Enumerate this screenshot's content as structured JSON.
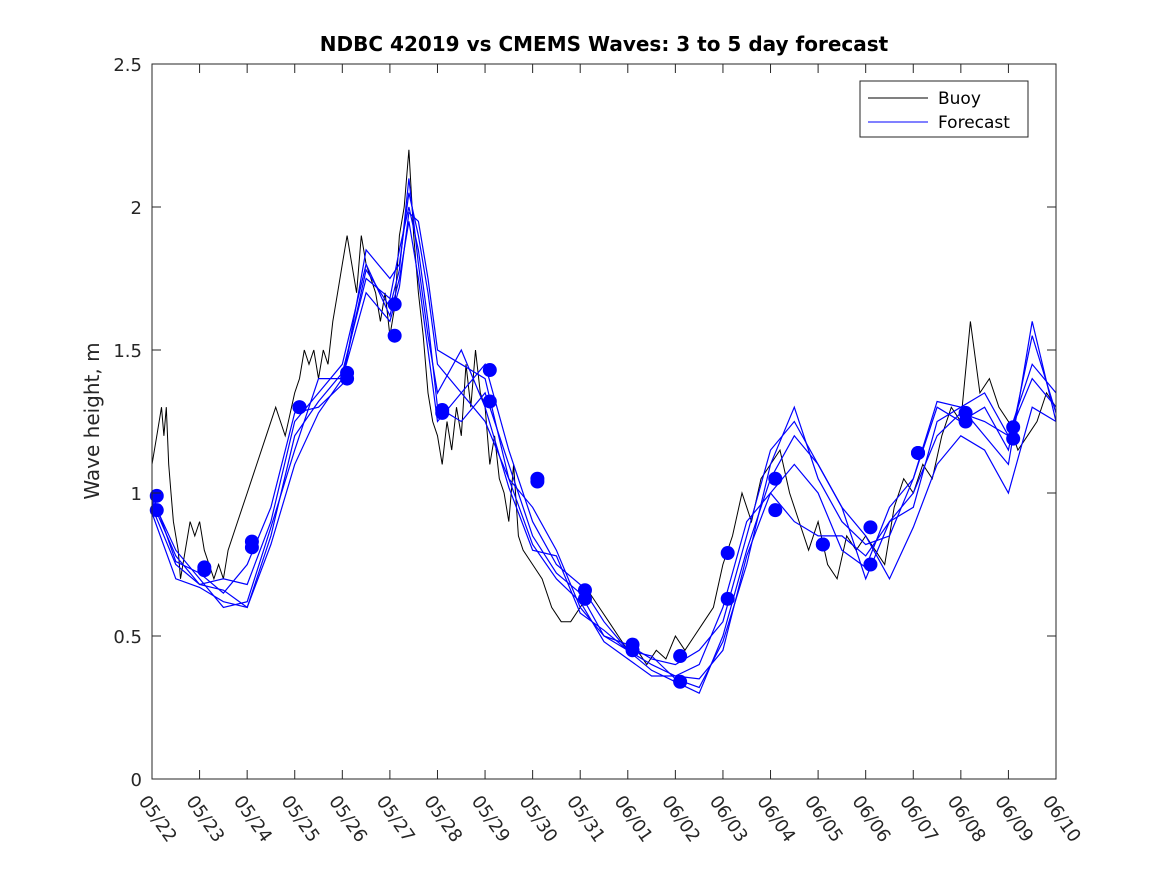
{
  "chart_data": {
    "type": "line",
    "title": "NDBC 42019 vs CMEMS Waves: 3 to 5 day forecast",
    "xlabel": "",
    "ylabel": "Wave height, m",
    "ylim": [
      0,
      2.5
    ],
    "yticks": [
      0,
      0.5,
      1,
      1.5,
      2,
      2.5
    ],
    "ytick_labels": [
      "0",
      "0.5",
      "1",
      "1.5",
      "2",
      "2.5"
    ],
    "xlim": [
      0,
      19
    ],
    "xtick_labels": [
      "05/22",
      "05/23",
      "05/24",
      "05/25",
      "05/26",
      "05/27",
      "05/28",
      "05/29",
      "05/30",
      "05/31",
      "06/01",
      "06/02",
      "06/03",
      "06/04",
      "06/05",
      "06/06",
      "06/07",
      "06/08",
      "06/09",
      "06/10"
    ],
    "legend": {
      "position": "top-right",
      "entries": [
        "Buoy",
        "Forecast"
      ]
    },
    "colors": {
      "buoy": "#000000",
      "forecast": "#0000ff",
      "axis": "#262626"
    },
    "buoy": {
      "name": "Buoy",
      "x": [
        0.0,
        0.1,
        0.2,
        0.25,
        0.3,
        0.35,
        0.4,
        0.45,
        0.5,
        0.55,
        0.6,
        0.7,
        0.8,
        0.9,
        1.0,
        1.1,
        1.2,
        1.3,
        1.4,
        1.5,
        1.6,
        1.8,
        2.0,
        2.2,
        2.4,
        2.6,
        2.8,
        3.0,
        3.1,
        3.2,
        3.3,
        3.4,
        3.5,
        3.6,
        3.7,
        3.8,
        3.9,
        4.0,
        4.1,
        4.2,
        4.3,
        4.4,
        4.5,
        4.6,
        4.7,
        4.8,
        4.9,
        5.0,
        5.1,
        5.2,
        5.3,
        5.4,
        5.5,
        5.6,
        5.7,
        5.8,
        5.9,
        6.0,
        6.1,
        6.2,
        6.3,
        6.4,
        6.5,
        6.6,
        6.7,
        6.8,
        6.9,
        7.0,
        7.1,
        7.2,
        7.3,
        7.4,
        7.5,
        7.6,
        7.7,
        7.8,
        8.0,
        8.2,
        8.4,
        8.6,
        8.8,
        9.0,
        9.2,
        9.4,
        9.6,
        9.8,
        10.0,
        10.2,
        10.4,
        10.6,
        10.8,
        11.0,
        11.2,
        11.4,
        11.6,
        11.8,
        12.0,
        12.2,
        12.4,
        12.6,
        12.8,
        13.0,
        13.2,
        13.4,
        13.6,
        13.8,
        14.0,
        14.2,
        14.4,
        14.6,
        14.8,
        15.0,
        15.2,
        15.4,
        15.6,
        15.8,
        16.0,
        16.2,
        16.4,
        16.6,
        16.8,
        17.0,
        17.2,
        17.4,
        17.6,
        17.8,
        18.0,
        18.2,
        18.4,
        18.6,
        18.8,
        19.0
      ],
      "values": [
        1.1,
        1.2,
        1.3,
        1.2,
        1.3,
        1.1,
        1.0,
        0.9,
        0.85,
        0.8,
        0.7,
        0.8,
        0.9,
        0.85,
        0.9,
        0.8,
        0.75,
        0.7,
        0.75,
        0.7,
        0.8,
        0.9,
        1.0,
        1.1,
        1.2,
        1.3,
        1.2,
        1.35,
        1.4,
        1.5,
        1.45,
        1.5,
        1.4,
        1.5,
        1.45,
        1.6,
        1.7,
        1.8,
        1.9,
        1.8,
        1.7,
        1.9,
        1.8,
        1.75,
        1.7,
        1.6,
        1.7,
        1.55,
        1.65,
        1.9,
        2.0,
        2.2,
        1.9,
        1.7,
        1.55,
        1.35,
        1.25,
        1.2,
        1.1,
        1.25,
        1.15,
        1.3,
        1.2,
        1.45,
        1.3,
        1.5,
        1.35,
        1.3,
        1.1,
        1.2,
        1.05,
        1.0,
        0.9,
        1.1,
        0.85,
        0.8,
        0.75,
        0.7,
        0.6,
        0.55,
        0.55,
        0.6,
        0.65,
        0.6,
        0.55,
        0.5,
        0.45,
        0.45,
        0.4,
        0.45,
        0.42,
        0.5,
        0.45,
        0.5,
        0.55,
        0.6,
        0.75,
        0.85,
        1.0,
        0.9,
        1.05,
        1.1,
        1.15,
        1.0,
        0.9,
        0.8,
        0.9,
        0.75,
        0.7,
        0.85,
        0.8,
        0.85,
        0.8,
        0.75,
        0.95,
        1.05,
        1.0,
        1.1,
        1.05,
        1.2,
        1.3,
        1.25,
        1.6,
        1.35,
        1.4,
        1.3,
        1.25,
        1.15,
        1.2,
        1.25,
        1.35,
        1.3
      ]
    },
    "forecast": {
      "name": "Forecast",
      "series": [
        {
          "x": [
            0.0,
            0.5,
            1.0,
            1.5,
            2.0,
            2.5,
            3.0,
            3.5,
            4.0,
            4.5,
            5.0,
            5.2,
            5.4,
            5.6,
            5.8,
            6.0,
            6.5,
            7.0,
            7.5,
            8.0,
            8.5,
            9.0,
            9.5,
            10.0,
            10.5,
            11.0,
            11.5,
            12.0,
            12.5,
            13.0,
            13.5,
            14.0,
            14.5,
            15.0,
            15.5,
            16.0,
            16.5,
            17.0,
            17.5,
            18.0,
            18.5,
            19.0
          ],
          "values": [
            0.97,
            0.78,
            0.68,
            0.66,
            0.6,
            0.85,
            1.2,
            1.32,
            1.42,
            1.75,
            1.68,
            1.85,
            2.0,
            1.85,
            1.6,
            1.3,
            1.25,
            1.35,
            1.1,
            0.85,
            0.72,
            0.65,
            0.5,
            0.45,
            0.4,
            0.36,
            0.4,
            0.6,
            0.9,
            1.0,
            0.9,
            0.85,
            0.85,
            0.78,
            0.9,
            1.0,
            1.2,
            1.28,
            1.25,
            1.2,
            1.4,
            1.3
          ]
        },
        {
          "x": [
            0.0,
            0.5,
            1.0,
            1.5,
            2.0,
            2.5,
            3.0,
            3.5,
            4.0,
            4.5,
            5.0,
            5.2,
            5.4,
            5.6,
            5.8,
            6.0,
            6.5,
            7.0,
            7.5,
            8.0,
            8.5,
            9.0,
            9.5,
            10.0,
            10.5,
            11.0,
            11.5,
            12.0,
            12.5,
            13.0,
            13.5,
            14.0,
            14.5,
            15.0,
            15.5,
            16.0,
            16.5,
            17.0,
            17.5,
            18.0,
            18.5,
            19.0
          ],
          "values": [
            0.95,
            0.75,
            0.68,
            0.7,
            0.68,
            0.9,
            1.25,
            1.35,
            1.45,
            1.8,
            1.62,
            1.75,
            1.95,
            1.75,
            1.5,
            1.25,
            1.35,
            1.45,
            1.15,
            0.9,
            0.75,
            0.68,
            0.55,
            0.45,
            0.38,
            0.34,
            0.3,
            0.5,
            0.8,
            1.05,
            1.2,
            1.1,
            0.95,
            0.85,
            0.7,
            0.88,
            1.1,
            1.2,
            1.15,
            1.0,
            1.3,
            1.25
          ]
        },
        {
          "x": [
            0.0,
            0.5,
            1.0,
            1.5,
            2.0,
            2.5,
            3.0,
            3.5,
            4.0,
            4.5,
            5.0,
            5.2,
            5.4,
            5.6,
            5.8,
            6.0,
            6.5,
            7.0,
            7.5,
            8.0,
            8.5,
            9.0,
            9.5,
            10.0,
            10.5,
            11.0,
            11.5,
            12.0,
            12.5,
            13.0,
            13.5,
            14.0,
            14.5,
            15.0,
            15.5,
            16.0,
            16.5,
            17.0,
            17.5,
            18.0,
            18.5,
            19.0
          ],
          "values": [
            1.0,
            0.76,
            0.72,
            0.65,
            0.75,
            0.95,
            1.28,
            1.3,
            1.38,
            1.85,
            1.75,
            1.8,
            2.05,
            1.9,
            1.7,
            1.45,
            1.35,
            1.25,
            1.05,
            0.95,
            0.8,
            0.6,
            0.5,
            0.47,
            0.42,
            0.4,
            0.45,
            0.55,
            0.85,
            1.15,
            1.25,
            1.1,
            0.95,
            0.7,
            0.9,
            0.95,
            1.25,
            1.3,
            1.35,
            1.2,
            1.45,
            1.35
          ]
        },
        {
          "x": [
            0.0,
            0.5,
            1.0,
            1.5,
            2.0,
            2.5,
            3.0,
            3.5,
            4.0,
            4.5,
            5.0,
            5.2,
            5.4,
            5.6,
            5.8,
            6.0,
            6.5,
            7.0,
            7.5,
            8.0,
            8.5,
            9.0,
            9.5,
            10.0,
            10.5,
            11.0,
            11.5,
            12.0,
            12.5,
            13.0,
            13.5,
            14.0,
            14.5,
            15.0,
            15.5,
            16.0,
            16.5,
            17.0,
            17.5,
            18.0,
            18.5,
            19.0
          ],
          "values": [
            0.93,
            0.7,
            0.67,
            0.62,
            0.6,
            0.82,
            1.1,
            1.28,
            1.4,
            1.7,
            1.6,
            1.72,
            1.98,
            1.95,
            1.75,
            1.5,
            1.45,
            1.4,
            1.05,
            0.82,
            0.7,
            0.62,
            0.48,
            0.42,
            0.36,
            0.36,
            0.35,
            0.45,
            0.78,
            1.0,
            1.1,
            1.0,
            0.8,
            0.74,
            0.95,
            1.05,
            1.3,
            1.25,
            1.3,
            1.15,
            1.55,
            1.28
          ]
        },
        {
          "x": [
            0.0,
            0.5,
            1.0,
            1.5,
            2.0,
            2.5,
            3.0,
            3.5,
            4.0,
            4.5,
            5.0,
            5.2,
            5.4,
            5.6,
            5.8,
            6.0,
            6.5,
            7.0,
            7.5,
            8.0,
            8.5,
            9.0,
            9.5,
            10.0,
            10.5,
            11.0,
            11.5,
            12.0,
            12.5,
            13.0,
            13.5,
            14.0,
            14.5,
            15.0,
            15.5,
            16.0,
            16.5,
            17.0,
            17.5,
            18.0,
            18.5,
            19.0
          ],
          "values": [
            0.98,
            0.8,
            0.7,
            0.6,
            0.62,
            0.88,
            1.15,
            1.4,
            1.4,
            1.78,
            1.65,
            1.78,
            2.1,
            1.8,
            1.55,
            1.35,
            1.5,
            1.3,
            1.02,
            0.8,
            0.78,
            0.58,
            0.52,
            0.45,
            0.43,
            0.35,
            0.32,
            0.48,
            0.75,
            1.1,
            1.3,
            1.05,
            0.9,
            0.82,
            0.85,
            1.05,
            1.32,
            1.3,
            1.2,
            1.1,
            1.6,
            1.25
          ]
        }
      ],
      "markers": {
        "x": [
          0.1,
          0.1,
          1.1,
          1.1,
          2.1,
          2.1,
          3.1,
          3.1,
          4.1,
          4.1,
          5.1,
          5.1,
          6.1,
          6.1,
          7.1,
          7.1,
          8.1,
          8.1,
          9.1,
          9.1,
          10.1,
          10.1,
          11.1,
          11.1,
          12.1,
          12.1,
          13.1,
          13.1,
          14.1,
          14.1,
          15.1,
          15.1,
          16.1,
          16.1,
          17.1,
          17.1,
          18.1,
          18.1
        ],
        "values": [
          0.99,
          0.94,
          0.74,
          0.73,
          0.83,
          0.81,
          1.3,
          1.3,
          1.42,
          1.4,
          1.66,
          1.55,
          1.29,
          1.28,
          1.43,
          1.32,
          1.05,
          1.04,
          0.66,
          0.63,
          0.47,
          0.45,
          0.43,
          0.34,
          0.79,
          0.63,
          1.05,
          0.94,
          0.82,
          0.82,
          0.88,
          0.75,
          1.14,
          1.14,
          1.28,
          1.25,
          1.23,
          1.19
        ]
      }
    }
  }
}
